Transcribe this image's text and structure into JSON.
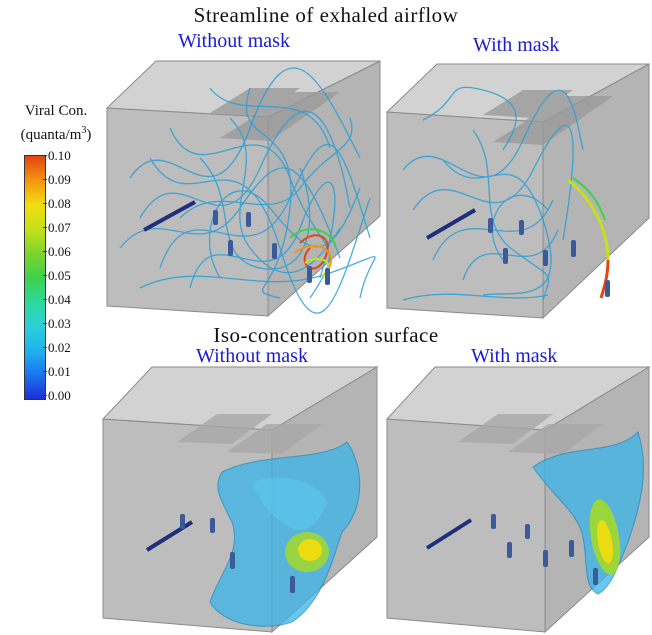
{
  "titles": {
    "streamline": "Streamline of exhaled airflow",
    "iso": "Iso-concentration surface"
  },
  "panels": {
    "top_left": "Without mask",
    "top_right": "With mask",
    "bottom_left": "Without mask",
    "bottom_right": "With mask"
  },
  "legend": {
    "title_line1": "Viral Con.",
    "title_line2": "(quanta/m",
    "title_sup": "3",
    "title_end": ")",
    "ticks": [
      "0.10",
      "0.09",
      "0.08",
      "0.07",
      "0.06",
      "0.05",
      "0.04",
      "0.03",
      "0.02",
      "0.01",
      "0.00"
    ]
  },
  "colors": {
    "title_blue": "#1a1ad6",
    "room": "#c4c4c4",
    "streamline": "#2a9fd6",
    "hot": "#e2451a",
    "iso_surface": "#3ab4e8"
  }
}
